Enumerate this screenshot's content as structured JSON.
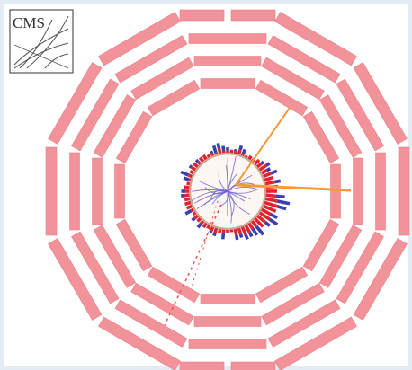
{
  "logo": {
    "text": "CMS"
  },
  "colors": {
    "background": "#e3ebf4",
    "detector_segments": "#f2939a",
    "detector_segment_edge": "#e97f88",
    "plot_area": "#ffffff",
    "tracker_ring": "#c8a98f",
    "hadronic_towers": "#3b3fb0",
    "electromagnetic_towers": "#e0232f",
    "tracks": "#6f62c8",
    "jet_line": "#f29a3e",
    "muon_line": "#e9504a"
  },
  "icons": [
    "cms-logo-icon"
  ]
}
